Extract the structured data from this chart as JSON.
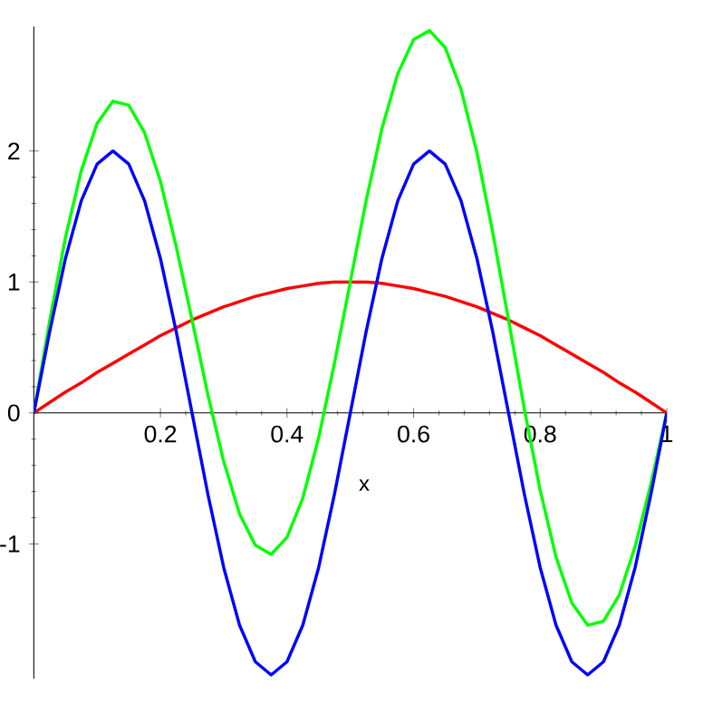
{
  "chart_data": {
    "type": "line",
    "xlabel": "x",
    "x": [
      0,
      0.025,
      0.05,
      0.075,
      0.1,
      0.125,
      0.15,
      0.175,
      0.2,
      0.225,
      0.25,
      0.275,
      0.3,
      0.325,
      0.35,
      0.375,
      0.4,
      0.425,
      0.45,
      0.475,
      0.5,
      0.525,
      0.55,
      0.575,
      0.6,
      0.625,
      0.65,
      0.675,
      0.7,
      0.725,
      0.75,
      0.775,
      0.8,
      0.825,
      0.85,
      0.875,
      0.9,
      0.925,
      0.95,
      0.975,
      1
    ],
    "series": [
      {
        "color": "#ff0000",
        "values": [
          0,
          0.08,
          0.16,
          0.23,
          0.31,
          0.38,
          0.45,
          0.52,
          0.59,
          0.65,
          0.71,
          0.76,
          0.81,
          0.85,
          0.89,
          0.92,
          0.95,
          0.97,
          0.99,
          1,
          1,
          1,
          0.99,
          0.97,
          0.95,
          0.92,
          0.89,
          0.85,
          0.81,
          0.76,
          0.71,
          0.65,
          0.59,
          0.52,
          0.45,
          0.38,
          0.31,
          0.23,
          0.16,
          0.08,
          0
        ]
      },
      {
        "color": "#00ff00",
        "values": [
          0,
          0.7,
          1.34,
          1.85,
          2.21,
          2.38,
          2.35,
          2.14,
          1.77,
          1.27,
          0.71,
          0.14,
          -0.37,
          -0.77,
          -1.01,
          -1.08,
          -0.95,
          -0.65,
          -0.19,
          0.38,
          1,
          1.62,
          2.17,
          2.59,
          2.85,
          2.92,
          2.79,
          2.47,
          1.99,
          1.38,
          0.71,
          0.03,
          -0.59,
          -1.1,
          -1.45,
          -1.62,
          -1.59,
          -1.39,
          -1.02,
          -0.54,
          0
        ]
      },
      {
        "color": "#0000ff",
        "values": [
          0,
          0.62,
          1.18,
          1.62,
          1.9,
          2,
          1.9,
          1.62,
          1.18,
          0.62,
          0,
          -0.62,
          -1.18,
          -1.62,
          -1.9,
          -2,
          -1.9,
          -1.62,
          -1.18,
          -0.62,
          0,
          0.62,
          1.18,
          1.62,
          1.9,
          2,
          1.9,
          1.62,
          1.18,
          0.62,
          0,
          -0.62,
          -1.18,
          -1.62,
          -1.9,
          -2,
          -1.9,
          -1.62,
          -1.18,
          -0.62,
          0
        ]
      }
    ],
    "xlim": [
      0,
      1
    ],
    "ylim": [
      -2.03,
      2.95
    ],
    "xticks": [
      0.2,
      0.4,
      0.6,
      0.8,
      1
    ],
    "yticks": [
      -1,
      0,
      1,
      2
    ],
    "grid": false,
    "marker": "none",
    "line_style": "solid"
  }
}
